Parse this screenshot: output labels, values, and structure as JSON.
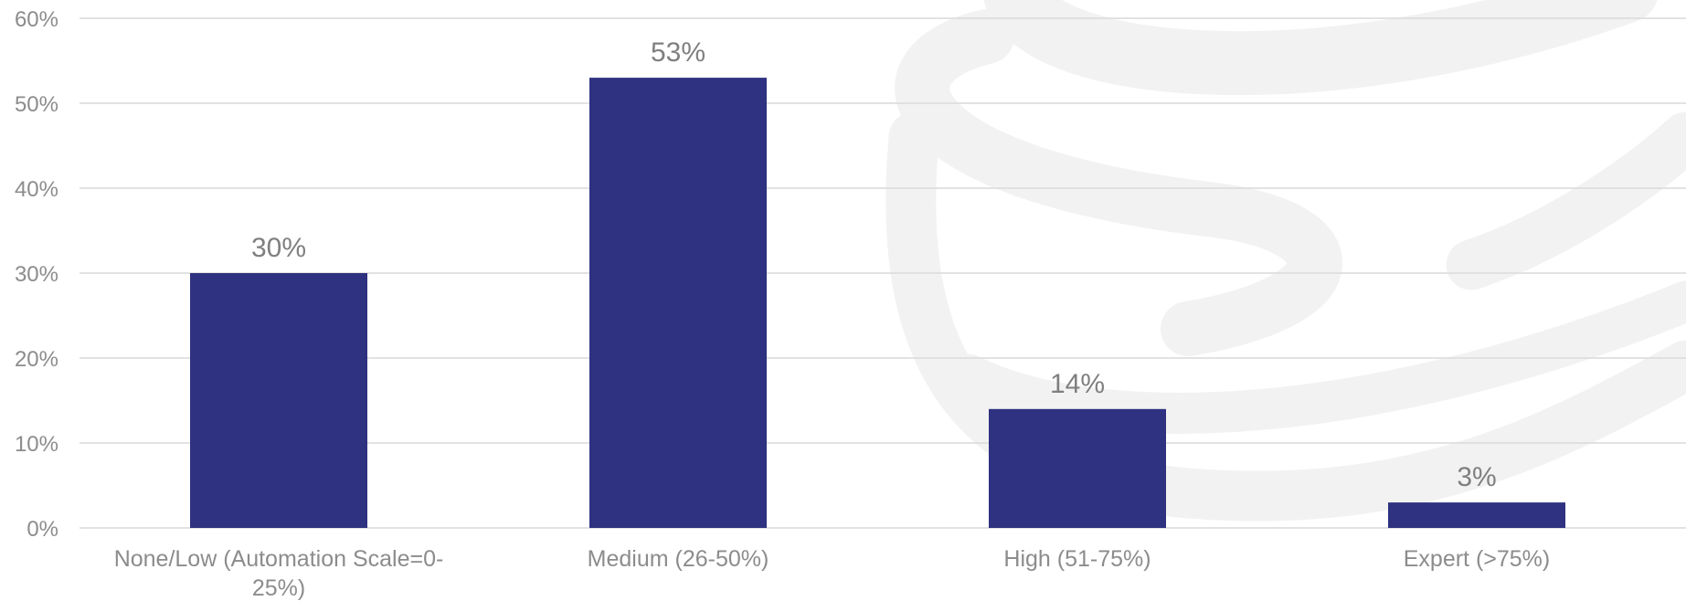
{
  "chart_data": {
    "type": "bar",
    "categories": [
      [
        "None/Low (Automation Scale=0-",
        "25%)"
      ],
      [
        "Medium (26-50%)"
      ],
      [
        "High (51-75%)"
      ],
      [
        "Expert (>75%)"
      ]
    ],
    "values": [
      30,
      53,
      14,
      3
    ],
    "data_labels": [
      "30%",
      "53%",
      "14%",
      "3%"
    ],
    "y_ticks": [
      "0%",
      "10%",
      "20%",
      "30%",
      "40%",
      "50%",
      "60%"
    ],
    "ylim": [
      0,
      60
    ],
    "grid": true,
    "title": "",
    "xlabel": "",
    "ylabel": "",
    "colors": {
      "bar": "#2e3280",
      "gridline": "#d9d9d9",
      "tick_text": "#8c8c8c",
      "data_label_text": "#7f7f7f",
      "watermark": "#f2f2f2"
    }
  }
}
